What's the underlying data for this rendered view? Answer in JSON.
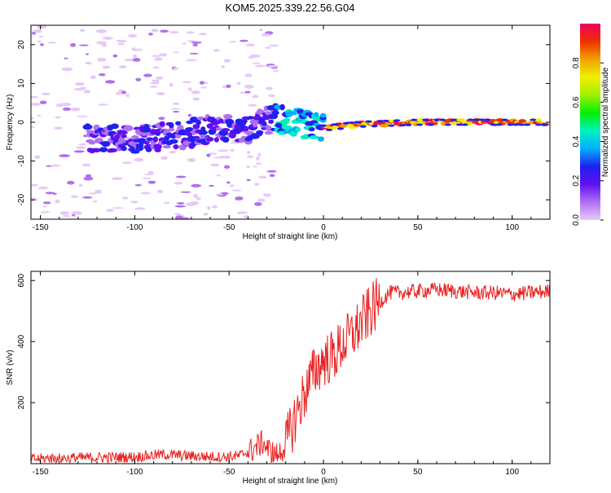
{
  "title": "KOM5.2025.339.22.56.G04",
  "chart_data": [
    {
      "type": "heatmap",
      "xlabel": "Height of straight line (km)",
      "ylabel": "Frequency (Hz)",
      "xlim": [
        -155,
        120
      ],
      "ylim": [
        -25,
        25
      ],
      "xticks": [
        -150,
        -100,
        -50,
        0,
        50,
        100
      ],
      "yticks": [
        -20,
        -10,
        0,
        10,
        20
      ],
      "colorbar": {
        "label": "Normalized spectral amplitude",
        "range": [
          0,
          1
        ],
        "ticks": [
          "0.0",
          "0.2",
          "0.4",
          "0.6",
          "0.8"
        ],
        "colors": [
          "#e8c8f8",
          "#b070f0",
          "#6010f0",
          "#2020f0",
          "#00b0ff",
          "#00f0c0",
          "#00f000",
          "#a0f000",
          "#f0f000",
          "#f0a000",
          "#f03000",
          "#f00060"
        ]
      },
      "ridge": {
        "description_points_x": [
          -100,
          -80,
          -60,
          -40,
          -25,
          -15,
          0,
          20,
          50,
          80,
          115
        ],
        "frequency_hz": [
          -4.5,
          -3.5,
          -2,
          -1.5,
          1,
          0,
          -1.5,
          -0.5,
          0,
          0,
          0
        ]
      }
    },
    {
      "type": "line",
      "xlabel": "Height of straight line (km)",
      "ylabel": "SNR (v/v)",
      "xlim": [
        -155,
        120
      ],
      "ylim": [
        0,
        630
      ],
      "xticks": [
        -150,
        -100,
        -50,
        0,
        50,
        100
      ],
      "yticks": [
        200,
        400,
        600
      ],
      "color": "#e82020",
      "series": [
        {
          "x": [
            -155,
            -140,
            -120,
            -100,
            -85,
            -70,
            -55,
            -45,
            -38,
            -32,
            -28,
            -24,
            -20,
            -15,
            -10,
            -5,
            0,
            5,
            10,
            15,
            20,
            25,
            30,
            35,
            40,
            50,
            60,
            70,
            80,
            90,
            100,
            110,
            120
          ],
          "values": [
            15,
            18,
            20,
            22,
            30,
            25,
            22,
            25,
            45,
            70,
            35,
            30,
            60,
            150,
            230,
            300,
            340,
            350,
            390,
            420,
            460,
            500,
            530,
            560,
            560,
            565,
            570,
            565,
            560,
            560,
            555,
            560,
            565
          ]
        }
      ]
    }
  ]
}
